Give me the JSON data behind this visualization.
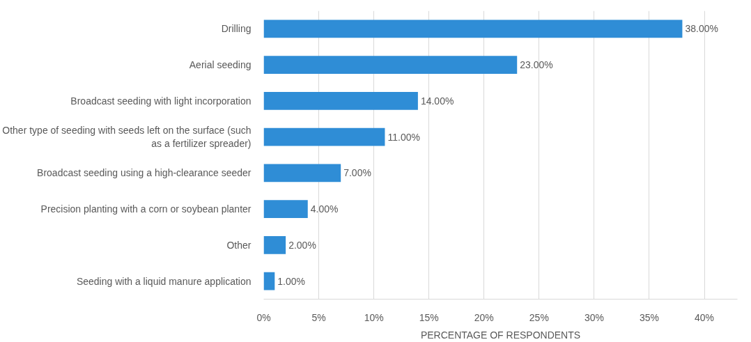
{
  "chart_data": {
    "type": "bar",
    "orientation": "horizontal",
    "xlabel": "PERCENTAGE OF RESPONDENTS",
    "categories": [
      "Drilling",
      "Aerial seeding",
      "Broadcast seeding with light incorporation",
      "Other type of seeding with seeds left on the surface (such\nas a fertilizer spreader)",
      "Broadcast seeding using a high-clearance seeder",
      "Precision planting with a corn or soybean planter",
      "Other",
      "Seeding with a liquid manure application"
    ],
    "values": [
      38,
      23,
      14,
      11,
      7,
      4,
      2,
      1
    ],
    "value_labels": [
      "38.00%",
      "23.00%",
      "14.00%",
      "11.00%",
      "7.00%",
      "4.00%",
      "2.00%",
      "1.00%"
    ],
    "color": "#2f8dd6",
    "xlim": [
      0,
      43
    ],
    "xticks": [
      {
        "value": 0,
        "label": "0%"
      },
      {
        "value": 5,
        "label": "5%"
      },
      {
        "value": 10,
        "label": "10%"
      },
      {
        "value": 15,
        "label": "15%"
      },
      {
        "value": 20,
        "label": "20%"
      },
      {
        "value": 25,
        "label": "25%"
      },
      {
        "value": 30,
        "label": "30%"
      },
      {
        "value": 35,
        "label": "35%"
      },
      {
        "value": 40,
        "label": "40%"
      }
    ],
    "grid": "x"
  }
}
